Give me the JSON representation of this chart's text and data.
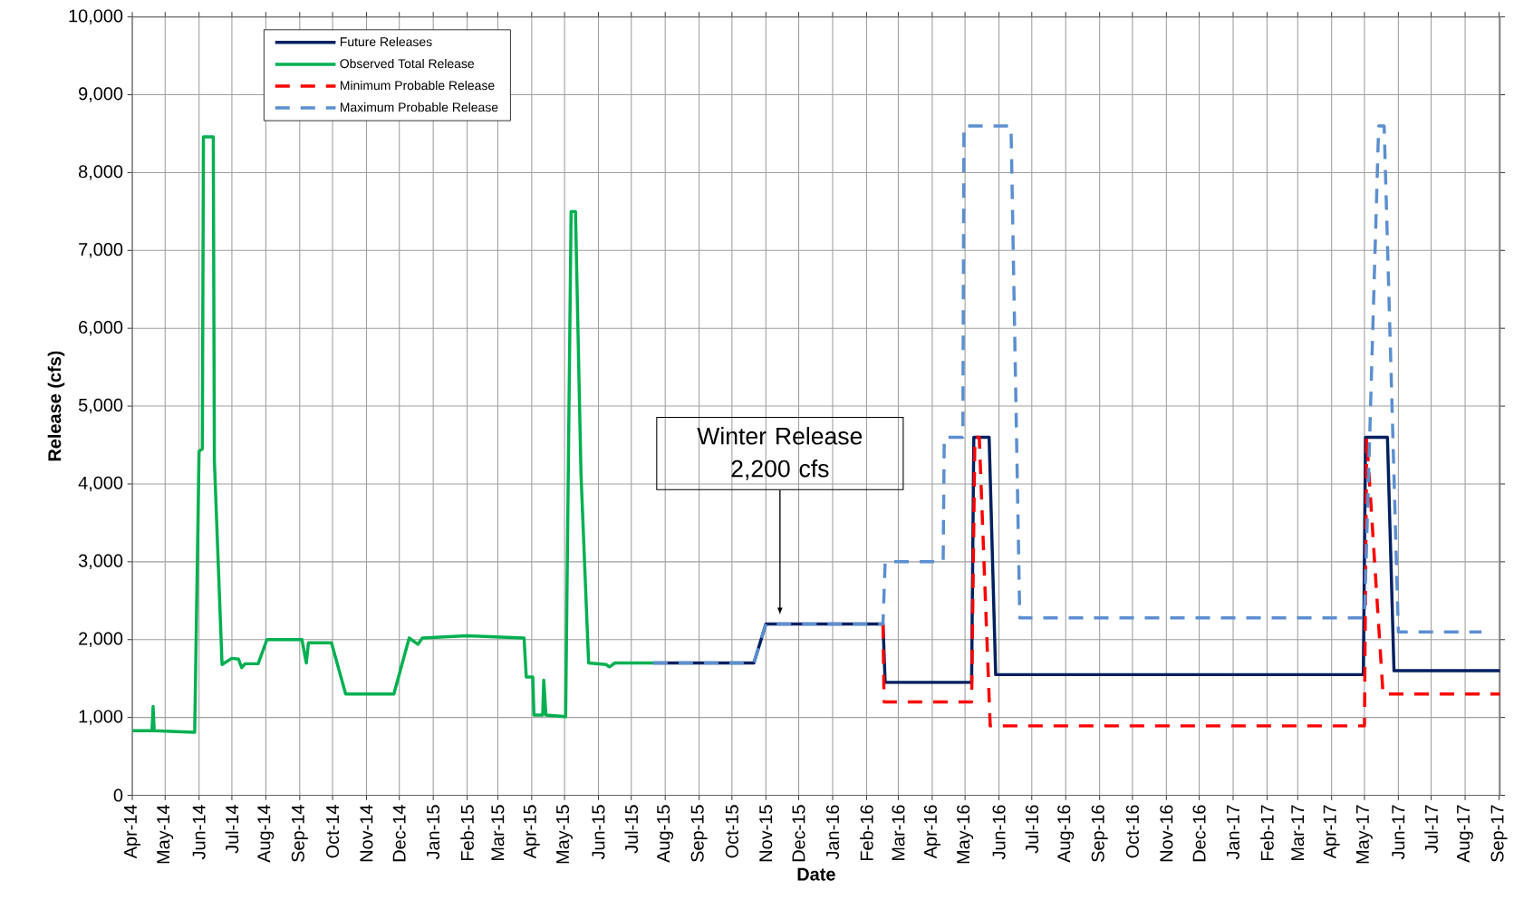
{
  "chart_data": {
    "type": "line",
    "xlabel": "Date",
    "ylabel": "Release (cfs)",
    "xlim": [
      "2014-04-01",
      "2017-09-02"
    ],
    "ylim": [
      0,
      10000
    ],
    "xticks": [
      {
        "value": "2014-04-01",
        "label": "Apr-14"
      },
      {
        "value": "2014-05-01",
        "label": "May-14"
      },
      {
        "value": "2014-06-01",
        "label": "Jun-14"
      },
      {
        "value": "2014-07-01",
        "label": "Jul-14"
      },
      {
        "value": "2014-08-01",
        "label": "Aug-14"
      },
      {
        "value": "2014-09-01",
        "label": "Sep-14"
      },
      {
        "value": "2014-10-01",
        "label": "Oct-14"
      },
      {
        "value": "2014-11-01",
        "label": "Nov-14"
      },
      {
        "value": "2014-12-01",
        "label": "Dec-14"
      },
      {
        "value": "2015-01-01",
        "label": "Jan-15"
      },
      {
        "value": "2015-02-01",
        "label": "Feb-15"
      },
      {
        "value": "2015-03-01",
        "label": "Mar-15"
      },
      {
        "value": "2015-04-01",
        "label": "Apr-15"
      },
      {
        "value": "2015-05-01",
        "label": "May-15"
      },
      {
        "value": "2015-06-01",
        "label": "Jun-15"
      },
      {
        "value": "2015-07-01",
        "label": "Jul-15"
      },
      {
        "value": "2015-08-01",
        "label": "Aug-15"
      },
      {
        "value": "2015-09-01",
        "label": "Sep-15"
      },
      {
        "value": "2015-10-01",
        "label": "Oct-15"
      },
      {
        "value": "2015-11-01",
        "label": "Nov-15"
      },
      {
        "value": "2015-12-01",
        "label": "Dec-15"
      },
      {
        "value": "2016-01-01",
        "label": "Jan-16"
      },
      {
        "value": "2016-02-01",
        "label": "Feb-16"
      },
      {
        "value": "2016-03-01",
        "label": "Mar-16"
      },
      {
        "value": "2016-04-01",
        "label": "Apr-16"
      },
      {
        "value": "2016-05-01",
        "label": "May-16"
      },
      {
        "value": "2016-06-01",
        "label": "Jun-16"
      },
      {
        "value": "2016-07-01",
        "label": "Jul-16"
      },
      {
        "value": "2016-08-01",
        "label": "Aug-16"
      },
      {
        "value": "2016-09-01",
        "label": "Sep-16"
      },
      {
        "value": "2016-10-01",
        "label": "Oct-16"
      },
      {
        "value": "2016-11-01",
        "label": "Nov-16"
      },
      {
        "value": "2016-12-01",
        "label": "Dec-16"
      },
      {
        "value": "2017-01-01",
        "label": "Jan-17"
      },
      {
        "value": "2017-02-01",
        "label": "Feb-17"
      },
      {
        "value": "2017-03-01",
        "label": "Mar-17"
      },
      {
        "value": "2017-04-01",
        "label": "Apr-17"
      },
      {
        "value": "2017-05-01",
        "label": "May-17"
      },
      {
        "value": "2017-06-01",
        "label": "Jun-17"
      },
      {
        "value": "2017-07-01",
        "label": "Jul-17"
      },
      {
        "value": "2017-08-01",
        "label": "Aug-17"
      },
      {
        "value": "2017-09-01",
        "label": "Sep-17"
      }
    ],
    "yticks": [
      0,
      {
        "value": 1000,
        "label": "1,000"
      },
      {
        "value": 2000,
        "label": "2,000"
      },
      {
        "value": 3000,
        "label": "3,000"
      },
      {
        "value": 4000,
        "label": "4,000"
      },
      {
        "value": 5000,
        "label": "5,000"
      },
      {
        "value": 6000,
        "label": "6,000"
      },
      {
        "value": 7000,
        "label": "7,000"
      },
      {
        "value": 8000,
        "label": "8,000"
      },
      {
        "value": 9000,
        "label": "9,000"
      },
      {
        "value": 10000,
        "label": "10,000"
      }
    ],
    "grid": true,
    "legend": "top left",
    "annotations": [
      "Winter Release 2,200 cfs"
    ],
    "series": [
      {
        "name": "Future Releases",
        "color": "#002060",
        "line_style": "solid",
        "x": [
          "2015-07-21",
          "2015-10-21",
          "2015-11-01",
          "2016-02-16",
          "2016-02-18",
          "2016-05-07",
          "2016-05-09",
          "2016-05-23",
          "2016-05-29",
          "2017-04-30",
          "2017-05-02",
          "2017-05-22",
          "2017-05-28",
          "2017-09-02"
        ],
        "values": [
          1700,
          1700,
          2200,
          2200,
          1450,
          1450,
          4600,
          4600,
          1550,
          1550,
          4600,
          4600,
          1600,
          1600
        ]
      },
      {
        "name": "Observed Total Release",
        "color": "#00b050",
        "line_style": "solid",
        "x": [
          "2014-04-01",
          "2014-04-19",
          "2014-04-20",
          "2014-04-21",
          "2014-05-28",
          "2014-06-01",
          "2014-06-04",
          "2014-06-05",
          "2014-06-14",
          "2014-06-15",
          "2014-06-22",
          "2014-07-01",
          "2014-07-07",
          "2014-07-10",
          "2014-07-13",
          "2014-07-25",
          "2014-08-02",
          "2014-09-03",
          "2014-09-07",
          "2014-09-09",
          "2014-09-30",
          "2014-10-13",
          "2014-11-26",
          "2014-12-10",
          "2014-12-18",
          "2014-12-22",
          "2015-02-01",
          "2015-03-25",
          "2015-03-27",
          "2015-04-02",
          "2015-04-03",
          "2015-04-11",
          "2015-04-12",
          "2015-04-14",
          "2015-05-02",
          "2015-05-07",
          "2015-05-11",
          "2015-05-16",
          "2015-05-23",
          "2015-06-08",
          "2015-06-11",
          "2015-06-16",
          "2015-07-21"
        ],
        "values": [
          830,
          830,
          1140,
          830,
          810,
          4420,
          4450,
          8460,
          8460,
          4300,
          1680,
          1760,
          1750,
          1640,
          1690,
          1690,
          2000,
          2000,
          1700,
          1960,
          1960,
          1300,
          1300,
          2020,
          1940,
          2020,
          2050,
          2020,
          1520,
          1520,
          1030,
          1030,
          1480,
          1030,
          1010,
          7500,
          7500,
          4140,
          1700,
          1680,
          1650,
          1700,
          1700
        ]
      },
      {
        "name": "Minimum Probable Release",
        "color": "#ff0000",
        "line_style": "dashed",
        "x": [
          "2016-02-16",
          "2016-02-17",
          "2016-05-07",
          "2016-05-10",
          "2016-05-14",
          "2016-05-24",
          "2017-05-01",
          "2017-05-03",
          "2017-05-18",
          "2017-09-02"
        ],
        "values": [
          2200,
          1200,
          1200,
          4600,
          4600,
          890,
          890,
          4600,
          1300,
          1300
        ]
      },
      {
        "name": "Maximum Probable Release",
        "color": "#5b8fd0",
        "line_style": "dashed",
        "x": [
          "2015-07-21",
          "2015-10-21",
          "2015-11-01",
          "2016-02-16",
          "2016-02-18",
          "2016-04-11",
          "2016-04-12",
          "2016-04-29",
          "2016-04-30",
          "2016-06-12",
          "2016-06-20",
          "2017-05-01",
          "2017-05-14",
          "2017-05-19",
          "2017-06-01",
          "2017-08-16"
        ],
        "values": [
          1700,
          1700,
          2200,
          2200,
          3000,
          3000,
          4600,
          4600,
          8600,
          8600,
          2280,
          2280,
          8600,
          8600,
          2100,
          2100
        ]
      }
    ]
  }
}
